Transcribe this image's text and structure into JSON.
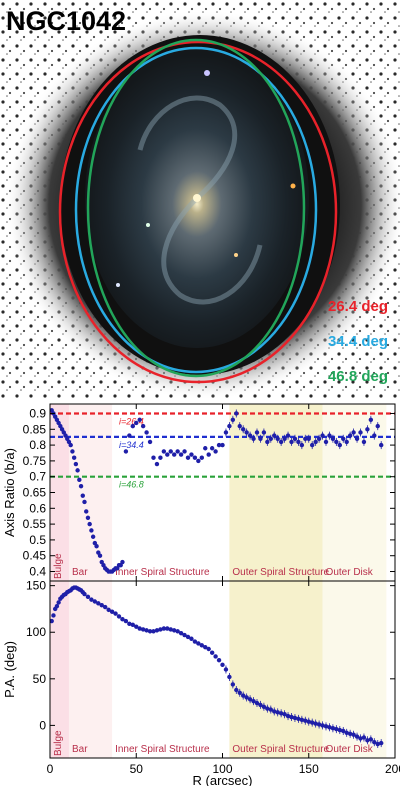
{
  "image": {
    "object_name": "NGC1042",
    "ellipse_labels": [
      {
        "text": "26.4 deg",
        "color": "#e8222a"
      },
      {
        "text": "34.4 deg",
        "color": "#29aae1"
      },
      {
        "text": "46.8 deg",
        "color": "#22a55a"
      }
    ]
  },
  "colors": {
    "data": "#1f1fa8",
    "red_line": "#e8222a",
    "blue_line": "#1f2fd0",
    "green_line": "#2aa23a",
    "bulge": "#fbdfe6",
    "bar": "#fdf0f0",
    "outer_spiral": "#f6f1cc",
    "outer_disk": "#fbf9ea"
  },
  "chart_data": [
    {
      "type": "scatter",
      "ylabel": "Axis Ratio (b/a)",
      "xlim": [
        0,
        200
      ],
      "ylim": [
        0.37,
        0.93
      ],
      "yticks": [
        0.4,
        0.45,
        0.5,
        0.55,
        0.6,
        0.65,
        0.7,
        0.75,
        0.8,
        0.85,
        0.9
      ],
      "reference_lines": [
        {
          "label": "i=26.4",
          "y": 0.9,
          "color": "#e8222a"
        },
        {
          "label": "i=34.4",
          "y": 0.826,
          "color": "#1f2fd0"
        },
        {
          "label": "i=46.8",
          "y": 0.7,
          "color": "#2aa23a"
        }
      ],
      "regions": [
        {
          "label": "Bulge",
          "x": [
            0,
            11
          ]
        },
        {
          "label": "Bar",
          "x": [
            11,
            36
          ]
        },
        {
          "label": "Inner Spiral Structure",
          "x": [
            36,
            104
          ]
        },
        {
          "label": "Outer Spiral Structure",
          "x": [
            104,
            158
          ]
        },
        {
          "label": "Outer Disk",
          "x": [
            158,
            195
          ]
        }
      ],
      "series": [
        {
          "x": [
            1,
            2,
            3,
            4,
            5,
            6,
            7,
            8,
            9,
            10,
            11,
            12,
            13,
            14,
            15,
            16,
            17,
            18,
            19,
            20,
            21,
            22,
            23,
            24,
            25,
            26,
            27,
            28,
            29,
            30,
            31,
            32,
            33,
            34,
            35,
            36,
            37,
            38,
            39,
            40,
            41,
            42,
            44,
            46,
            48,
            50,
            52,
            54,
            56,
            58,
            60,
            62,
            64,
            66,
            68,
            70,
            72,
            74,
            76,
            78,
            80,
            82,
            84,
            86,
            88,
            90,
            92,
            94,
            96,
            98,
            100,
            102,
            104,
            106,
            108,
            110,
            112,
            114,
            116,
            118,
            120,
            122,
            124,
            126,
            128,
            130,
            132,
            134,
            136,
            138,
            140,
            142,
            144,
            146,
            148,
            150,
            152,
            154,
            156,
            158,
            160,
            162,
            164,
            166,
            168,
            170,
            172,
            174,
            176,
            178,
            180,
            182,
            184,
            186,
            188,
            190,
            192
          ],
          "y": [
            0.91,
            0.9,
            0.89,
            0.88,
            0.87,
            0.86,
            0.85,
            0.84,
            0.83,
            0.82,
            0.81,
            0.8,
            0.78,
            0.76,
            0.74,
            0.72,
            0.69,
            0.67,
            0.64,
            0.62,
            0.59,
            0.57,
            0.55,
            0.53,
            0.51,
            0.49,
            0.48,
            0.46,
            0.45,
            0.43,
            0.42,
            0.41,
            0.405,
            0.4,
            0.4,
            0.4,
            0.405,
            0.41,
            0.41,
            0.42,
            0.42,
            0.43,
            0.78,
            0.83,
            0.86,
            0.87,
            0.88,
            0.86,
            0.84,
            0.81,
            0.76,
            0.74,
            0.76,
            0.78,
            0.77,
            0.78,
            0.77,
            0.78,
            0.77,
            0.78,
            0.76,
            0.77,
            0.76,
            0.75,
            0.76,
            0.79,
            0.77,
            0.79,
            0.78,
            0.8,
            0.8,
            0.84,
            0.86,
            0.88,
            0.9,
            0.86,
            0.85,
            0.84,
            0.83,
            0.82,
            0.84,
            0.82,
            0.84,
            0.81,
            0.82,
            0.83,
            0.82,
            0.81,
            0.82,
            0.83,
            0.81,
            0.82,
            0.81,
            0.8,
            0.82,
            0.82,
            0.8,
            0.81,
            0.82,
            0.83,
            0.81,
            0.83,
            0.82,
            0.81,
            0.8,
            0.82,
            0.81,
            0.83,
            0.84,
            0.82,
            0.84,
            0.81,
            0.85,
            0.88,
            0.83,
            0.86,
            0.8
          ]
        }
      ]
    },
    {
      "type": "scatter",
      "ylabel": "P.A. (deg)",
      "xlabel": "R (arcsec)",
      "xlim": [
        0,
        200
      ],
      "ylim": [
        -35,
        155
      ],
      "xticks": [
        0,
        50,
        100,
        150,
        200
      ],
      "yticks": [
        0,
        50,
        100,
        150
      ],
      "regions": [
        {
          "label": "Bulge",
          "x": [
            0,
            11
          ]
        },
        {
          "label": "Bar",
          "x": [
            11,
            36
          ]
        },
        {
          "label": "Inner Spiral Structure",
          "x": [
            36,
            104
          ]
        },
        {
          "label": "Outer Spiral Structure",
          "x": [
            104,
            158
          ]
        },
        {
          "label": "Outer Disk",
          "x": [
            158,
            195
          ]
        }
      ],
      "series": [
        {
          "x": [
            1,
            2,
            3,
            4,
            5,
            6,
            7,
            8,
            9,
            10,
            11,
            12,
            13,
            14,
            15,
            16,
            17,
            18,
            19,
            20,
            22,
            24,
            26,
            28,
            30,
            32,
            34,
            36,
            38,
            40,
            42,
            44,
            46,
            48,
            50,
            52,
            54,
            56,
            58,
            60,
            62,
            64,
            66,
            68,
            70,
            72,
            74,
            76,
            78,
            80,
            82,
            84,
            86,
            88,
            90,
            92,
            94,
            96,
            98,
            100,
            102,
            104,
            106,
            108,
            110,
            112,
            114,
            116,
            118,
            120,
            122,
            124,
            126,
            128,
            130,
            132,
            134,
            136,
            138,
            140,
            142,
            144,
            146,
            148,
            150,
            152,
            154,
            156,
            158,
            160,
            162,
            164,
            166,
            168,
            170,
            172,
            174,
            176,
            178,
            180,
            182,
            184,
            186,
            188,
            190,
            192
          ],
          "y": [
            112,
            118,
            125,
            128,
            132,
            136,
            138,
            140,
            141,
            143,
            144,
            145,
            147,
            148,
            148,
            147,
            146,
            145,
            143,
            141,
            138,
            135,
            133,
            131,
            129,
            127,
            124,
            122,
            120,
            117,
            114,
            112,
            109,
            108,
            106,
            104,
            103,
            102,
            101,
            101,
            102,
            103,
            104,
            104,
            103,
            102,
            101,
            99,
            97,
            95,
            93,
            90,
            88,
            86,
            84,
            82,
            78,
            74,
            70,
            65,
            60,
            52,
            44,
            38,
            35,
            32,
            30,
            28,
            26,
            24,
            22,
            20,
            18,
            17,
            15,
            14,
            13,
            12,
            10,
            9,
            8,
            7,
            6,
            5,
            4,
            3,
            2,
            1,
            0,
            -1,
            -2,
            -3,
            -4,
            -5,
            -6,
            -8,
            -9,
            -10,
            -12,
            -14,
            -13,
            -16,
            -15,
            -18,
            -20,
            -19
          ]
        }
      ]
    }
  ]
}
